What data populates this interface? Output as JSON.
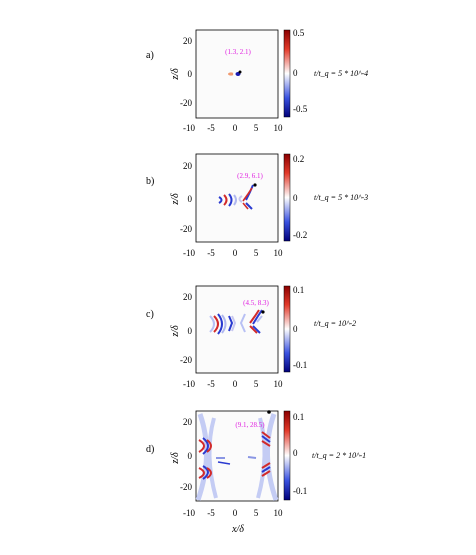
{
  "figure": {
    "x_label": "x/δ",
    "y_label": "z/δ",
    "panels": [
      {
        "label": "a)",
        "annotation": "(1.3, 2.1)",
        "time_label": "t/t_q = 5 * 10^-4",
        "colorbar": {
          "max_label": "0.5",
          "mid_label": "0",
          "min_label": "-0.5"
        },
        "x_ticks": [
          "-10",
          "-5",
          "0",
          "5",
          "10"
        ],
        "y_ticks": [
          "20",
          "0",
          "-20"
        ]
      },
      {
        "label": "b)",
        "annotation": "(2.9, 6.1)",
        "time_label": "t/t_q = 5 * 10^-3",
        "colorbar": {
          "max_label": "0.2",
          "mid_label": "0",
          "min_label": "-0.2"
        },
        "x_ticks": [
          "-10",
          "-5",
          "0",
          "5",
          "10"
        ],
        "y_ticks": [
          "20",
          "0",
          "-20"
        ]
      },
      {
        "label": "c)",
        "annotation": "(4.5, 8.3)",
        "time_label": "t/t_q = 10^-2",
        "colorbar": {
          "max_label": "0.1",
          "mid_label": "0",
          "min_label": "-0.1"
        },
        "x_ticks": [
          "-10",
          "-5",
          "0",
          "5",
          "10"
        ],
        "y_ticks": [
          "20",
          "0",
          "-20"
        ]
      },
      {
        "label": "d)",
        "annotation": "(9.1, 28.5)",
        "time_label": "t/t_q = 2 * 10^-1",
        "colorbar": {
          "max_label": "0.1",
          "mid_label": "0",
          "min_label": "-0.1"
        },
        "x_ticks": [
          "-10",
          "-5",
          "0",
          "5",
          "10"
        ],
        "y_ticks": [
          "20",
          "0",
          "-20"
        ]
      }
    ],
    "colors": {
      "positive": "#d2222a",
      "negative": "#2634c8",
      "annotation": "#e020e0",
      "marker": "#000000"
    }
  }
}
